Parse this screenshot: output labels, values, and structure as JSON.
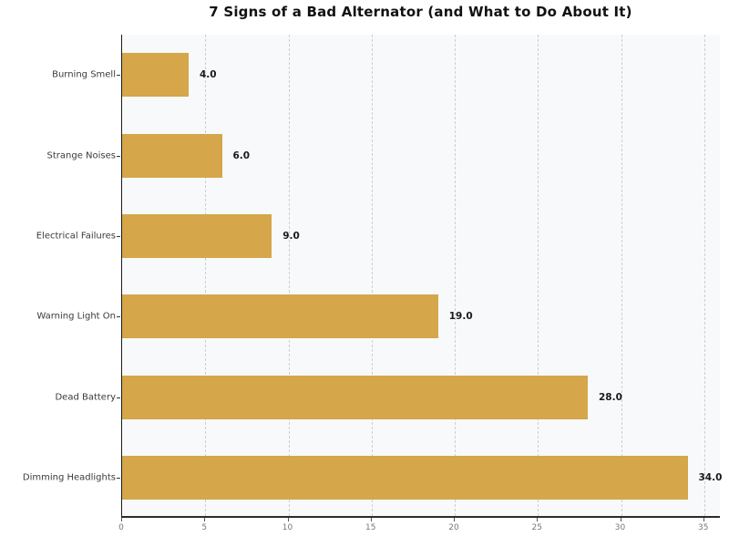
{
  "chart_data": {
    "type": "bar",
    "orientation": "horizontal",
    "title": "7 Signs of a Bad Alternator (and What to Do About It)",
    "categories": [
      "Burning Smell",
      "Strange Noises",
      "Electrical Failures",
      "Warning Light On",
      "Dead Battery",
      "Dimming Headlights"
    ],
    "values": [
      4.0,
      6.0,
      9.0,
      19.0,
      28.0,
      34.0
    ],
    "value_labels": [
      "4.0",
      "6.0",
      "9.0",
      "19.0",
      "28.0",
      "34.0"
    ],
    "xlabel": "",
    "ylabel": "",
    "xlim": [
      0,
      36
    ],
    "x_ticks": [
      0,
      5,
      10,
      15,
      20,
      25,
      30,
      35
    ],
    "x_tick_labels": [
      "0",
      "5",
      "10",
      "15",
      "20",
      "25",
      "30",
      "35"
    ],
    "grid": "vertical-dashed",
    "legend": "none",
    "bar_color": "#d5a64a",
    "plot_background": "#f8f9fa",
    "figure_background": "#ffffff",
    "gridline_color": "#cbcfd4",
    "title_color": "#111111",
    "category_label_color": "#3a3a3a",
    "value_label_color": "#1a1a1a",
    "tick_label_color": "#777777"
  }
}
